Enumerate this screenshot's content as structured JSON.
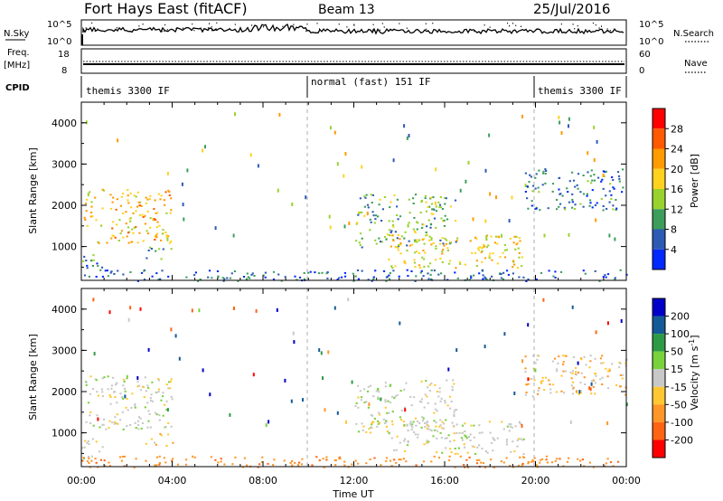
{
  "header": {
    "station": "Fort Hays East (fitACF)",
    "beam": "Beam 13",
    "date": "25/Jul/2016"
  },
  "strip": {
    "nsky_label": "N.Sky",
    "nsky_ticks": [
      "10^5",
      "10^0"
    ],
    "nsearch_label": "N.Search",
    "freq_label_1": "Freq.",
    "freq_label_2": "[MHz]",
    "freq_ticks": [
      "18",
      "8"
    ],
    "nave_label": "Nave",
    "nave_ticks": [
      "60",
      "0"
    ],
    "cpid_label": "CPID",
    "modes": [
      "themis 3300 IF",
      "normal (fast) 151 IF",
      "themis 3300 IF"
    ]
  },
  "axes": {
    "ylabel": "Slant Range [km]",
    "xlabel": "Time UT",
    "yticks": [
      "4000",
      "3000",
      "2000",
      "1000"
    ],
    "xticks": [
      "00:00",
      "04:00",
      "08:00",
      "12:00",
      "16:00",
      "20:00",
      "00:00"
    ]
  },
  "power_scale": {
    "label": "Power [dB]",
    "ticks": [
      "28",
      "24",
      "20",
      "16",
      "12",
      "8",
      "4"
    ],
    "colors": [
      "#ff0000",
      "#ff5a00",
      "#ff9b00",
      "#ffd21e",
      "#9ad22d",
      "#3c9e5a",
      "#2d5ab4",
      "#0028ff"
    ]
  },
  "velocity_scale": {
    "label": "Velocity [m s",
    "label_sup": "-1",
    "label_end": "]",
    "ticks": [
      "200",
      "100",
      "50",
      "15",
      "-15",
      "-50",
      "-100",
      "-200"
    ],
    "colors": [
      "#0000c8",
      "#145a96",
      "#2d9a46",
      "#78d23c",
      "#c8c8c8",
      "#ffc832",
      "#ff9628",
      "#ff6414",
      "#ff0000"
    ]
  },
  "chart_data": {
    "type": "heatmap",
    "panels": [
      "power",
      "velocity"
    ],
    "x_range_hours": [
      0,
      24
    ],
    "y_range_km": [
      180,
      4500
    ],
    "mode_change_hours": [
      10,
      20
    ],
    "echo_regions": [
      {
        "t": [
          0.1,
          4.0
        ],
        "range_km": [
          1100,
          2400
        ],
        "power_db": 22,
        "velocity": 0
      },
      {
        "t": [
          0.0,
          1.0
        ],
        "range_km": [
          400,
          900
        ],
        "power_db": 10,
        "velocity": 0
      },
      {
        "t": [
          2.8,
          4.0
        ],
        "range_km": [
          700,
          1000
        ],
        "power_db": 12,
        "velocity": -30
      },
      {
        "t": [
          12.0,
          16.5
        ],
        "range_km": [
          1000,
          2300
        ],
        "power_db": 14,
        "velocity": 0
      },
      {
        "t": [
          13.5,
          19.5
        ],
        "range_km": [
          500,
          1300
        ],
        "power_db": 20,
        "velocity": 0
      },
      {
        "t": [
          19.5,
          24.0
        ],
        "range_km": [
          1900,
          2900
        ],
        "power_db": 10,
        "velocity": -20
      },
      {
        "t": [
          0.0,
          24.0
        ],
        "range_km": [
          180,
          450
        ],
        "power_db": 8,
        "velocity": -60
      }
    ]
  }
}
